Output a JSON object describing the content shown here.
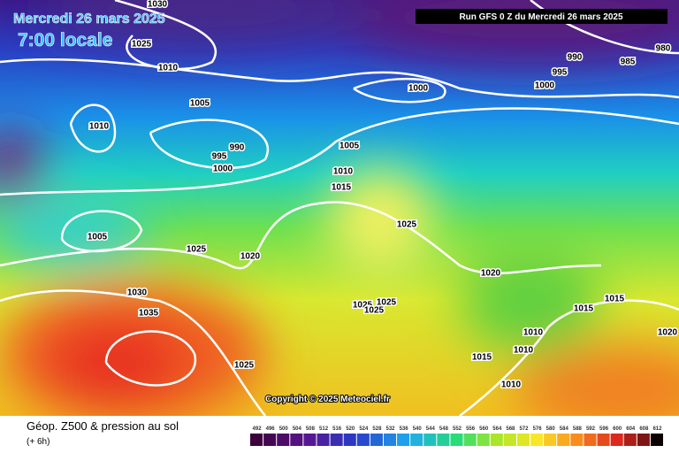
{
  "header": {
    "date": "Mercredi 26 mars 2025",
    "time": "7:00 locale",
    "run": "Run GFS 0 Z du Mercredi 26 mars 2025"
  },
  "isobar_labels": [
    "1030",
    "1025",
    "1010",
    "1005",
    "1010",
    "990",
    "995",
    "1000",
    "1000",
    "990",
    "985",
    "980",
    "995",
    "1000",
    "1005",
    "1010",
    "1015",
    "1005",
    "1025",
    "1020",
    "1025",
    "1030",
    "1035",
    "1020",
    "1025",
    "1025",
    "1025",
    "1015",
    "1015",
    "1010",
    "1020",
    "1010",
    "1015",
    "1025",
    "1010"
  ],
  "copyright": "Copyright © 2025 Meteociel.fr",
  "footer": {
    "title": "Géop. Z500 & pression au sol",
    "subtitle": "(+ 6h)"
  },
  "scale_labels": [
    492,
    496,
    500,
    504,
    508,
    512,
    516,
    520,
    524,
    528,
    532,
    536,
    540,
    544,
    548,
    552,
    556,
    560,
    564,
    568,
    572,
    576,
    580,
    584,
    588,
    592,
    596,
    600,
    604,
    608,
    612
  ]
}
